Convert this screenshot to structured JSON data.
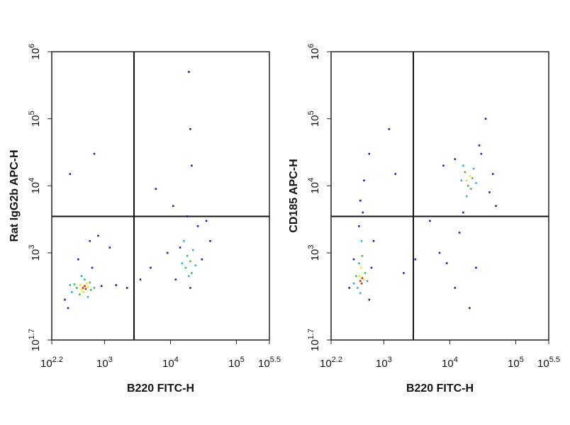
{
  "chart_data": [
    {
      "type": "scatter",
      "x_label": "B220 FITC-H",
      "y_label": "Rat IgG2b APC-H",
      "log_x": true,
      "log_y": true,
      "xlim": [
        158.49,
        316227.77
      ],
      "ylim": [
        50.12,
        1000000
      ],
      "xticks": [
        {
          "value": 158.49,
          "label": "10^2.2"
        },
        {
          "value": 1000,
          "label": "10^3"
        },
        {
          "value": 10000,
          "label": "10^4"
        },
        {
          "value": 100000,
          "label": "10^5"
        },
        {
          "value": 316227.77,
          "label": "10^5.5"
        }
      ],
      "yticks": [
        {
          "value": 50.12,
          "label": "10^1.7"
        },
        {
          "value": 1000,
          "label": "10^3"
        },
        {
          "value": 10000,
          "label": "10^4"
        },
        {
          "value": 100000,
          "label": "10^5"
        },
        {
          "value": 1000000,
          "label": "10^6"
        }
      ],
      "gate": {
        "x": 2800,
        "y": 3500
      },
      "series": [
        {
          "color": "#1d1dd0",
          "x": [
            250,
            900,
            1500,
            2200,
            280,
            650,
            400,
            800,
            12000,
            30000,
            26000,
            18000,
            14000,
            40000,
            20000,
            9000,
            6000,
            20000,
            19000,
            21000,
            3500,
            5000,
            600,
            1200,
            35000,
            11000,
            300,
            700
          ],
          "y": [
            200,
            320,
            330,
            300,
            150,
            600,
            800,
            1800,
            400,
            800,
            2500,
            3500,
            1200,
            1500,
            300,
            1000,
            9000,
            70000,
            500000,
            20000,
            400,
            600,
            1500,
            1200,
            3000,
            5000,
            15000,
            30000
          ]
        },
        {
          "color": "#1fb4d8",
          "x": [
            320,
            700,
            450,
            560,
            300,
            15000,
            22000,
            19000,
            16000,
            24000
          ],
          "y": [
            260,
            300,
            450,
            220,
            330,
            700,
            1100,
            450,
            1500,
            650
          ]
        },
        {
          "color": "#33c83c",
          "x": [
            380,
            620,
            500,
            420,
            600,
            350,
            17000,
            20000,
            18000,
            21000
          ],
          "y": [
            300,
            280,
            400,
            240,
            360,
            340,
            600,
            750,
            900,
            500
          ]
        },
        {
          "color": "#f5e50a",
          "x": [
            430,
            560,
            480,
            450,
            540
          ],
          "y": [
            330,
            310,
            260,
            280,
            350
          ]
        },
        {
          "color": "#e8210f",
          "x": [
            470,
            500,
            520
          ],
          "y": [
            300,
            320,
            290
          ]
        }
      ]
    },
    {
      "type": "scatter",
      "x_label": "B220 FITC-H",
      "y_label": "CD185 APC-H",
      "log_x": true,
      "log_y": true,
      "xlim": [
        158.49,
        316227.77
      ],
      "ylim": [
        50.12,
        1000000
      ],
      "xticks": [
        {
          "value": 158.49,
          "label": "10^2.2"
        },
        {
          "value": 1000,
          "label": "10^3"
        },
        {
          "value": 10000,
          "label": "10^4"
        },
        {
          "value": 100000,
          "label": "10^5"
        },
        {
          "value": 316227.77,
          "label": "10^5.5"
        }
      ],
      "yticks": [
        {
          "value": 50.12,
          "label": "10^1.7"
        },
        {
          "value": 1000,
          "label": "10^3"
        },
        {
          "value": 10000,
          "label": "10^4"
        },
        {
          "value": 100000,
          "label": "10^5"
        },
        {
          "value": 1000000,
          "label": "10^6"
        }
      ],
      "gate": {
        "x": 2800,
        "y": 3500
      },
      "series": [
        {
          "color": "#1d1dd0",
          "x": [
            300,
            650,
            420,
            480,
            500,
            440,
            600,
            2000,
            3000,
            7000,
            12000,
            14000,
            16000,
            30000,
            40000,
            28000,
            12000,
            45000,
            20000,
            9000,
            25000,
            1500,
            1200,
            600,
            5000,
            35000,
            50000,
            8000,
            700,
            350
          ],
          "y": [
            300,
            600,
            2500,
            4000,
            12000,
            6000,
            200,
            500,
            800,
            1000,
            300,
            2000,
            4000,
            30000,
            8000,
            40000,
            25000,
            15000,
            150,
            700,
            600,
            15000,
            70000,
            30000,
            3000,
            100000,
            5000,
            20000,
            1500,
            800
          ]
        },
        {
          "color": "#1fb4d8",
          "x": [
            350,
            560,
            460,
            420,
            440,
            16000,
            25000,
            18000,
            23000,
            15000
          ],
          "y": [
            350,
            380,
            1500,
            700,
            250,
            20000,
            11000,
            7000,
            18000,
            12000
          ]
        },
        {
          "color": "#33c83c",
          "x": [
            400,
            520,
            470,
            380,
            19000,
            17000,
            22000,
            21000
          ],
          "y": [
            300,
            500,
            900,
            450,
            10000,
            16000,
            13000,
            9000
          ]
        },
        {
          "color": "#f5e50a",
          "x": [
            430,
            500,
            450,
            18000,
            20000
          ],
          "y": [
            450,
            400,
            600,
            12000,
            14000
          ]
        },
        {
          "color": "#e8210f",
          "x": [
            440,
            470,
            460
          ],
          "y": [
            380,
            420,
            350
          ]
        }
      ]
    }
  ]
}
